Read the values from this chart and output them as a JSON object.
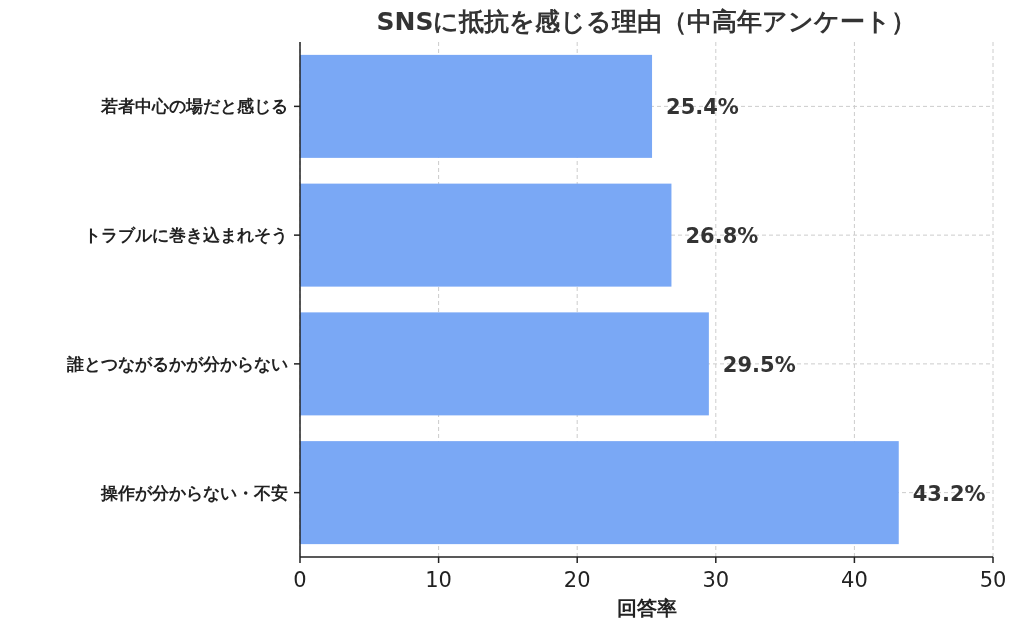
{
  "chart_data": {
    "type": "bar",
    "orientation": "horizontal",
    "title": "SNSに抵抗を感じる理由（中高年アンケート）",
    "xlabel": "回答率",
    "categories": [
      "若者中心の場だと感じる",
      "トラブルに巻き込まれそう",
      "誰とつながるかが分からない",
      "操作が分からない・不安"
    ],
    "values": [
      25.4,
      26.8,
      29.5,
      43.2
    ],
    "value_labels": [
      "25.4%",
      "26.8%",
      "29.5%",
      "43.2%"
    ],
    "color": "#7aa8f5",
    "xlim": [
      0,
      50
    ],
    "xticks": [
      0,
      10,
      20,
      30,
      40,
      50
    ],
    "grid": true
  }
}
